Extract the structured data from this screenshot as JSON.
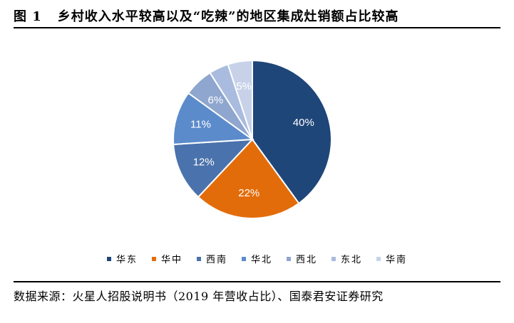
{
  "figure": {
    "label": "图 1",
    "title": "乡村收入水平较高以及“吃辣”的地区集成灶销额占比较高"
  },
  "chart_data": {
    "type": "pie",
    "categories": [
      "华东",
      "华中",
      "西南",
      "华北",
      "西北",
      "东北",
      "华南"
    ],
    "values": [
      40,
      22,
      12,
      11,
      6,
      4,
      5
    ],
    "labels": [
      "40%",
      "22%",
      "12%",
      "11%",
      "6%",
      "",
      "5%"
    ],
    "colors": [
      "#1F4679",
      "#E36C0A",
      "#4A72AC",
      "#5C8BCB",
      "#8FA6CE",
      "#A9BCDF",
      "#C7D2E9"
    ],
    "legend_position": "bottom"
  },
  "source": "数据来源：火星人招股说明书（2019 年营收占比）、国泰君安证券研究"
}
